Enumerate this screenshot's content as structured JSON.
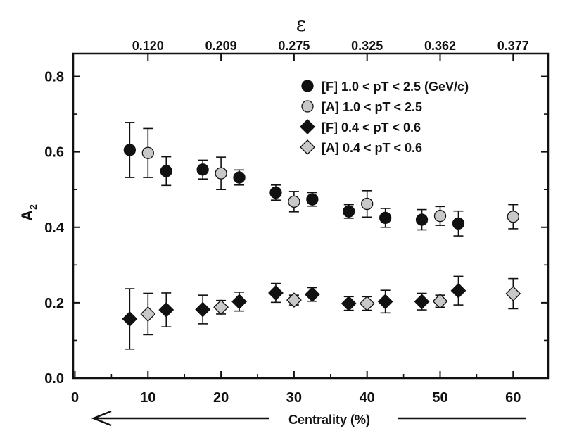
{
  "chart_data": {
    "type": "scatter",
    "title": "",
    "xlabel": "Centrality (%)",
    "ylabel": "A",
    "ylabel_sub": "2",
    "top_xlabel": "ε",
    "xlim": [
      0,
      65
    ],
    "ylim": [
      0.0,
      0.85
    ],
    "x_ticks": [
      0,
      10,
      20,
      30,
      40,
      50,
      60
    ],
    "x_tick_labels": [
      "0",
      "10",
      "20",
      "30",
      "40",
      "50",
      "60"
    ],
    "y_ticks": [
      0.0,
      0.2,
      0.4,
      0.6,
      0.8
    ],
    "y_tick_labels": [
      "0.0",
      "0.2",
      "0.4",
      "0.6",
      "0.8"
    ],
    "top_ticks": [
      10,
      20,
      30,
      40,
      50,
      60
    ],
    "top_tick_labels": [
      "0.120",
      "0.209",
      "0.275",
      "0.325",
      "0.362",
      "0.377"
    ],
    "legend_position": "top-right",
    "series": [
      {
        "name": "[F] 1.0 < pT < 2.5 (GeV/c)",
        "marker": "circle",
        "color": "#111111",
        "points": [
          {
            "x": 7.5,
            "y": 0.605,
            "err": 0.073
          },
          {
            "x": 12.5,
            "y": 0.549,
            "err": 0.038
          },
          {
            "x": 17.5,
            "y": 0.553,
            "err": 0.025
          },
          {
            "x": 22.5,
            "y": 0.532,
            "err": 0.02
          },
          {
            "x": 27.5,
            "y": 0.492,
            "err": 0.02
          },
          {
            "x": 32.5,
            "y": 0.474,
            "err": 0.018
          },
          {
            "x": 37.5,
            "y": 0.442,
            "err": 0.018
          },
          {
            "x": 42.5,
            "y": 0.425,
            "err": 0.025
          },
          {
            "x": 47.5,
            "y": 0.42,
            "err": 0.027
          },
          {
            "x": 52.5,
            "y": 0.41,
            "err": 0.033
          }
        ]
      },
      {
        "name": "[A] 1.0 < pT < 2.5",
        "marker": "circle",
        "color": "#c8c8c8",
        "points": [
          {
            "x": 10,
            "y": 0.597,
            "err": 0.065
          },
          {
            "x": 20,
            "y": 0.543,
            "err": 0.043
          },
          {
            "x": 30,
            "y": 0.468,
            "err": 0.027
          },
          {
            "x": 40,
            "y": 0.462,
            "err": 0.035
          },
          {
            "x": 50,
            "y": 0.43,
            "err": 0.025
          },
          {
            "x": 60,
            "y": 0.428,
            "err": 0.032
          }
        ]
      },
      {
        "name": "[F] 0.4 < pT < 0.6",
        "marker": "diamond",
        "color": "#111111",
        "points": [
          {
            "x": 7.5,
            "y": 0.157,
            "err": 0.08
          },
          {
            "x": 12.5,
            "y": 0.181,
            "err": 0.045
          },
          {
            "x": 17.5,
            "y": 0.182,
            "err": 0.038
          },
          {
            "x": 22.5,
            "y": 0.203,
            "err": 0.025
          },
          {
            "x": 27.5,
            "y": 0.226,
            "err": 0.025
          },
          {
            "x": 32.5,
            "y": 0.222,
            "err": 0.018
          },
          {
            "x": 37.5,
            "y": 0.198,
            "err": 0.018
          },
          {
            "x": 42.5,
            "y": 0.203,
            "err": 0.03
          },
          {
            "x": 47.5,
            "y": 0.203,
            "err": 0.022
          },
          {
            "x": 52.5,
            "y": 0.232,
            "err": 0.038
          }
        ]
      },
      {
        "name": "[A] 0.4 < pT < 0.6",
        "marker": "diamond",
        "color": "#c8c8c8",
        "points": [
          {
            "x": 10,
            "y": 0.17,
            "err": 0.055
          },
          {
            "x": 20,
            "y": 0.188,
            "err": 0.018
          },
          {
            "x": 30,
            "y": 0.207,
            "err": 0.013
          },
          {
            "x": 40,
            "y": 0.198,
            "err": 0.018
          },
          {
            "x": 50,
            "y": 0.204,
            "err": 0.016
          },
          {
            "x": 60,
            "y": 0.224,
            "err": 0.04
          }
        ]
      }
    ]
  }
}
